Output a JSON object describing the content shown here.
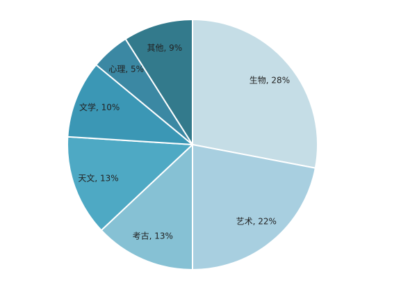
{
  "chart_data": {
    "type": "pie",
    "values": [
      28,
      22,
      13,
      13,
      10,
      5,
      9
    ],
    "value_labels": [
      "生物, 28%",
      "艺术, 22%",
      "考古, 13%",
      "天文, 13%",
      "文学, 10%",
      "心理, 5%",
      "其他, 9%"
    ],
    "colors": [
      "#c5dde6",
      "#a8cfe0",
      "#86c1d4",
      "#4ea9c4",
      "#3b97b5",
      "#3b88a3",
      "#337a8c"
    ]
  }
}
